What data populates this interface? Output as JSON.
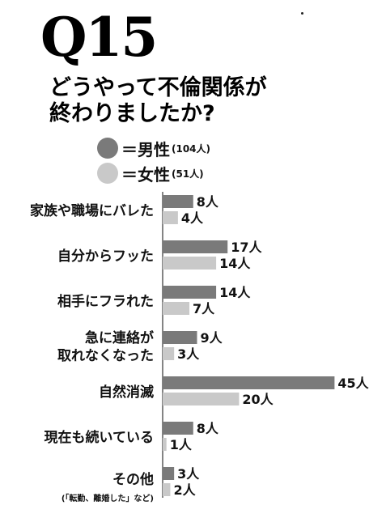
{
  "header": {
    "question": "Q15",
    "title_line1": "どうやって不倫関係が",
    "title_line2": "終わりましたか?"
  },
  "legend": [
    {
      "label": "＝男性",
      "count": "(104人)",
      "color": "#7a7a7a"
    },
    {
      "label": "＝女性",
      "count": "(51人)",
      "color": "#c9c9c9"
    }
  ],
  "colors": {
    "male": "#7a7a7a",
    "female": "#c9c9c9"
  },
  "chart_data": {
    "type": "bar",
    "orientation": "horizontal",
    "title": "どうやって不倫関係が終わりましたか?",
    "unit": "人",
    "categories": [
      {
        "lines": [
          "家族や職場にバレた"
        ]
      },
      {
        "lines": [
          "自分からフッた"
        ]
      },
      {
        "lines": [
          "相手にフラれた"
        ]
      },
      {
        "lines": [
          "急に連絡が",
          "取れなくなった"
        ]
      },
      {
        "lines": [
          "自然消滅"
        ]
      },
      {
        "lines": [
          "現在も続いている"
        ]
      },
      {
        "lines": [
          "その他"
        ],
        "note": "(「転勤、離婚した」など)"
      }
    ],
    "series": [
      {
        "name": "男性",
        "values": [
          8,
          17,
          14,
          9,
          45,
          8,
          3
        ]
      },
      {
        "name": "女性",
        "values": [
          4,
          14,
          7,
          3,
          20,
          1,
          2
        ]
      }
    ],
    "grid": false,
    "legend_position": "top-left"
  }
}
